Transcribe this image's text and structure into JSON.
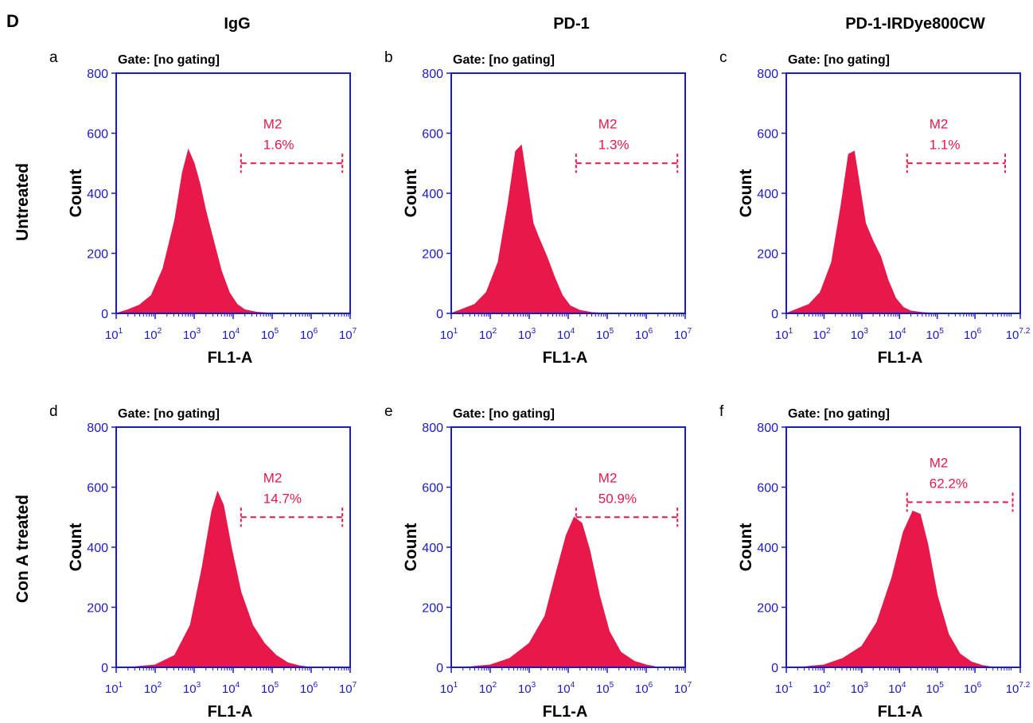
{
  "figure_letter": "D",
  "column_titles": [
    "IgG",
    "PD-1",
    "PD-1-IRDye800CW"
  ],
  "row_titles": [
    "Untreated",
    "Con A treated"
  ],
  "colors": {
    "axis": "#1a1acc",
    "histogram": "#e8184a",
    "marker": "#e8184a",
    "text": "#000000"
  },
  "chart_data": [
    {
      "panel": "a",
      "type": "area",
      "gate": "Gate: [no gating]",
      "ylabel": "Count",
      "xlabel": "FL1-A",
      "ylim": [
        0,
        800
      ],
      "yticks": [
        "0",
        "200",
        "400",
        "600",
        "800"
      ],
      "x_scale": "log",
      "xticks": [
        "7",
        "1",
        "2",
        "3",
        "4",
        "5",
        "6",
        "7"
      ],
      "marker": {
        "name": "M2",
        "percent": "1.6%",
        "from_log10": 4.2,
        "to_log10": 6.8,
        "level": 500
      },
      "x_log10": [
        1.0,
        1.3,
        1.6,
        1.9,
        2.2,
        2.5,
        2.7,
        2.85,
        3.0,
        3.15,
        3.3,
        3.5,
        3.7,
        3.9,
        4.1,
        4.3,
        4.6,
        5.0
      ],
      "counts": [
        0,
        12,
        28,
        60,
        150,
        310,
        470,
        545,
        500,
        430,
        340,
        240,
        140,
        70,
        30,
        12,
        4,
        0
      ]
    },
    {
      "panel": "b",
      "type": "area",
      "gate": "Gate: [no gating]",
      "ylabel": "Count",
      "xlabel": "FL1-A",
      "ylim": [
        0,
        800
      ],
      "yticks": [
        "0",
        "200",
        "400",
        "600",
        "800"
      ],
      "x_scale": "log",
      "xticks": [
        "7",
        "1",
        "2",
        "3",
        "4",
        "5",
        "6",
        "7"
      ],
      "marker": {
        "name": "M2",
        "percent": "1.3%",
        "from_log10": 4.2,
        "to_log10": 6.8,
        "level": 500
      },
      "x_log10": [
        1.0,
        1.3,
        1.6,
        1.9,
        2.2,
        2.45,
        2.65,
        2.8,
        2.95,
        3.1,
        3.25,
        3.45,
        3.65,
        3.85,
        4.05,
        4.3,
        4.6,
        5.0
      ],
      "counts": [
        0,
        15,
        30,
        70,
        170,
        360,
        540,
        560,
        430,
        300,
        250,
        190,
        120,
        60,
        25,
        10,
        3,
        0
      ]
    },
    {
      "panel": "c",
      "type": "area",
      "gate": "Gate: [no gating]",
      "ylabel": "Count",
      "xlabel": "FL1-A",
      "ylim": [
        0,
        800
      ],
      "yticks": [
        "0",
        "200",
        "400",
        "600",
        "800"
      ],
      "x_scale": "log",
      "xticks": [
        "7.2",
        "1",
        "2",
        "3",
        "4",
        "5",
        "6",
        "7.2"
      ],
      "marker": {
        "name": "M2",
        "percent": "1.1%",
        "from_log10": 4.2,
        "to_log10": 6.8,
        "level": 500
      },
      "x_log10": [
        1.0,
        1.3,
        1.6,
        1.9,
        2.2,
        2.45,
        2.65,
        2.8,
        2.95,
        3.1,
        3.3,
        3.5,
        3.7,
        3.9,
        4.1,
        4.3,
        4.6,
        5.0
      ],
      "counts": [
        0,
        15,
        30,
        70,
        170,
        360,
        530,
        540,
        420,
        300,
        240,
        190,
        110,
        50,
        20,
        8,
        3,
        0
      ]
    },
    {
      "panel": "d",
      "type": "area",
      "gate": "Gate: [no gating]",
      "ylabel": "Count",
      "xlabel": "FL1-A",
      "ylim": [
        0,
        800
      ],
      "yticks": [
        "0",
        "200",
        "400",
        "600",
        "800"
      ],
      "x_scale": "log",
      "xticks": [
        "7",
        "1",
        "2",
        "3",
        "4",
        "5",
        "6",
        "7"
      ],
      "marker": {
        "name": "M2",
        "percent": "14.7%",
        "from_log10": 4.2,
        "to_log10": 6.8,
        "level": 500
      },
      "x_log10": [
        1.0,
        1.5,
        2.0,
        2.5,
        2.9,
        3.2,
        3.45,
        3.6,
        3.75,
        3.95,
        4.2,
        4.5,
        4.8,
        5.1,
        5.4,
        5.7,
        6.0
      ],
      "counts": [
        0,
        2,
        8,
        40,
        140,
        330,
        520,
        585,
        540,
        400,
        250,
        140,
        80,
        40,
        15,
        5,
        0
      ]
    },
    {
      "panel": "e",
      "type": "area",
      "gate": "Gate: [no gating]",
      "ylabel": "Count",
      "xlabel": "FL1-A",
      "ylim": [
        0,
        800
      ],
      "yticks": [
        "0",
        "200",
        "400",
        "600",
        "800"
      ],
      "x_scale": "log",
      "xticks": [
        "7",
        "1",
        "2",
        "3",
        "4",
        "5",
        "6",
        "7"
      ],
      "marker": {
        "name": "M2",
        "percent": "50.9%",
        "from_log10": 4.2,
        "to_log10": 6.8,
        "level": 500
      },
      "x_log10": [
        1.0,
        1.5,
        2.0,
        2.5,
        3.0,
        3.4,
        3.7,
        3.95,
        4.15,
        4.35,
        4.55,
        4.8,
        5.05,
        5.35,
        5.7,
        6.0,
        6.3
      ],
      "counts": [
        0,
        2,
        8,
        30,
        80,
        170,
        320,
        440,
        500,
        480,
        390,
        240,
        120,
        50,
        20,
        8,
        0
      ]
    },
    {
      "panel": "f",
      "type": "area",
      "gate": "Gate: [no gating]",
      "ylabel": "Count",
      "xlabel": "FL1-A",
      "ylim": [
        0,
        800
      ],
      "yticks": [
        "0",
        "200",
        "400",
        "600",
        "800"
      ],
      "x_scale": "log",
      "xticks": [
        "7.2",
        "1",
        "2",
        "3",
        "4",
        "5",
        "6",
        "7.2"
      ],
      "marker": {
        "name": "M2",
        "percent": "62.2%",
        "from_log10": 4.2,
        "to_log10": 7.0,
        "level": 550
      },
      "x_log10": [
        1.0,
        1.5,
        2.0,
        2.5,
        3.0,
        3.4,
        3.8,
        4.1,
        4.35,
        4.55,
        4.75,
        5.0,
        5.3,
        5.6,
        5.9,
        6.2,
        6.5
      ],
      "counts": [
        0,
        2,
        8,
        30,
        70,
        150,
        300,
        450,
        520,
        510,
        410,
        240,
        110,
        45,
        18,
        6,
        0
      ]
    }
  ]
}
